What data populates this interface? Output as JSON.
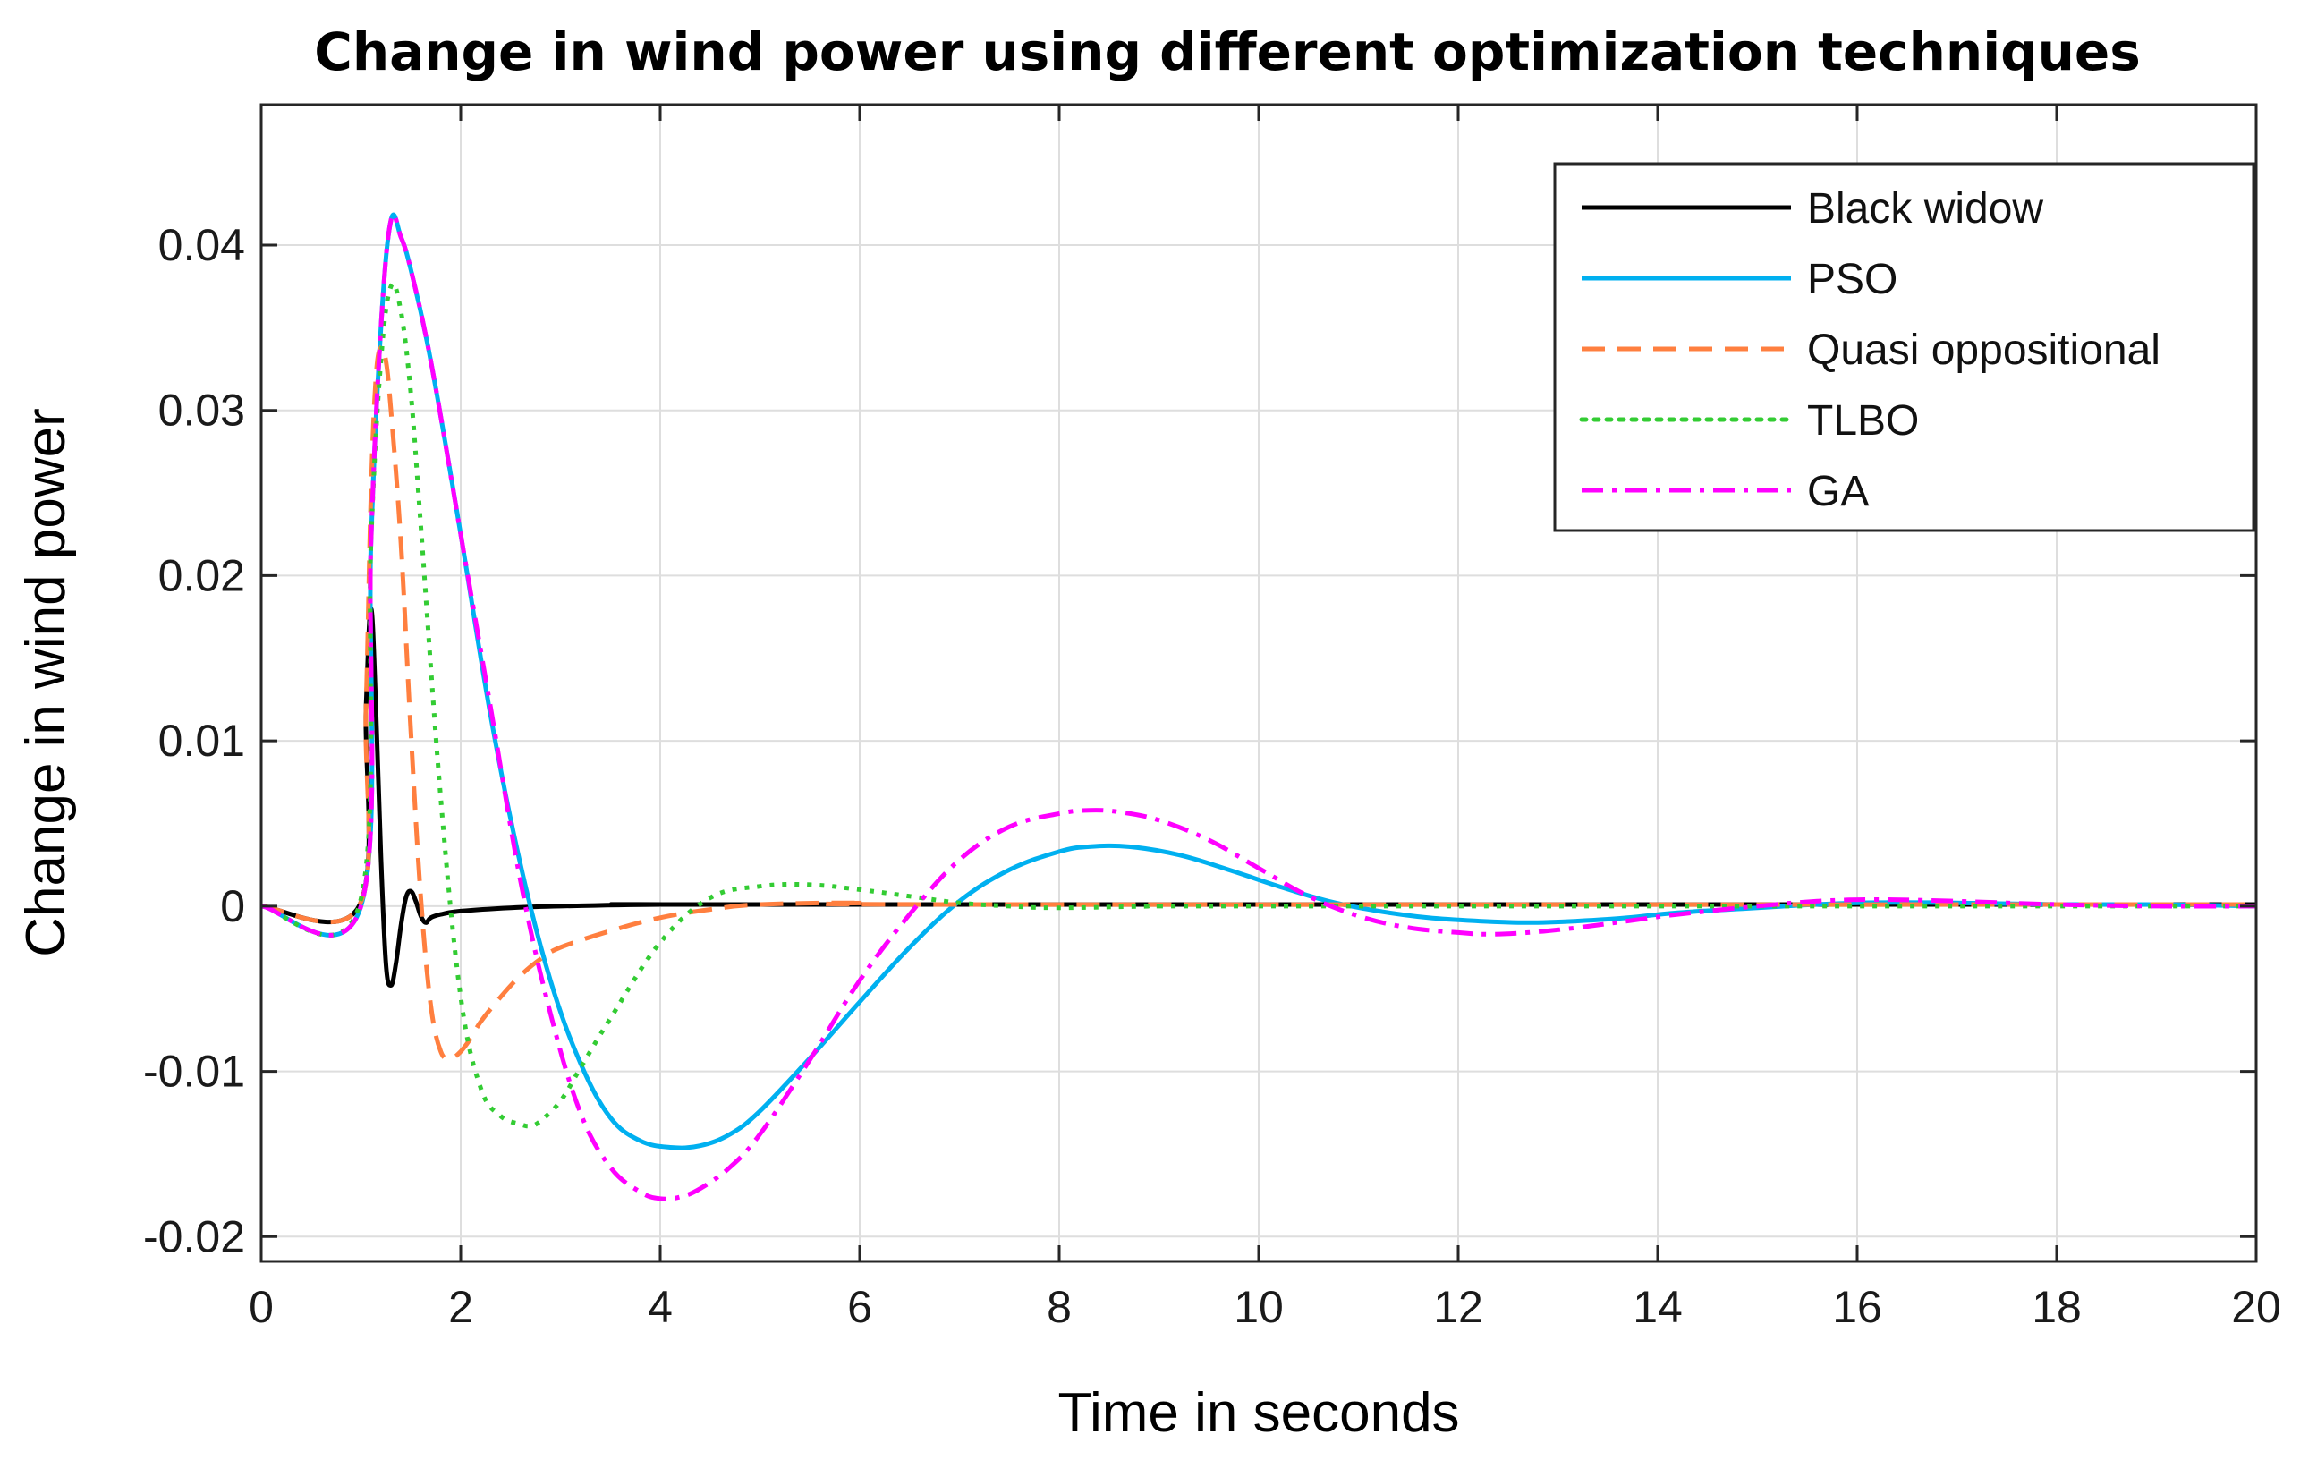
{
  "chart_data": {
    "type": "line",
    "title": "Change in wind power using different optimization techniques",
    "xlabel": "Time in seconds",
    "ylabel": "Change in wind power",
    "xlim": [
      0,
      20
    ],
    "ylim": [
      -0.0215,
      0.0485
    ],
    "xticks": [
      0,
      2,
      4,
      6,
      8,
      10,
      12,
      14,
      16,
      18,
      20
    ],
    "xtick_labels": [
      "0",
      "2",
      "4",
      "6",
      "8",
      "10",
      "12",
      "14",
      "16",
      "18",
      "20"
    ],
    "yticks": [
      -0.02,
      -0.01,
      0,
      0.01,
      0.02,
      0.03,
      0.04
    ],
    "ytick_labels": [
      "-0.02",
      "-0.01",
      "0",
      "0.01",
      "0.02",
      "0.03",
      "0.04"
    ],
    "grid": true,
    "legend_position": "top-right",
    "series": [
      {
        "name": "Black widow",
        "color": "#000000",
        "dash": "solid",
        "x": [
          0,
          0.98,
          1.05,
          1.1,
          1.15,
          1.2,
          1.25,
          1.3,
          1.35,
          1.4,
          1.45,
          1.5,
          1.55,
          1.6,
          1.65,
          1.7,
          1.8,
          2.0,
          2.5,
          3.0,
          4.0,
          5.0,
          20
        ],
        "y": [
          0,
          0,
          0.012,
          0.018,
          0.012,
          0.003,
          -0.0035,
          -0.0048,
          -0.0035,
          -0.0012,
          0.0005,
          0.0009,
          0.0003,
          -0.0006,
          -0.001,
          -0.0007,
          -0.0005,
          -0.0003,
          -0.0001,
          0,
          0.0001,
          0.0001,
          0.0001
        ]
      },
      {
        "name": "PSO",
        "color": "#00b0f0",
        "dash": "solid",
        "x": [
          0,
          1.0,
          1.1,
          1.2,
          1.3,
          1.4,
          1.5,
          1.7,
          2.0,
          2.3,
          2.6,
          2.9,
          3.2,
          3.5,
          3.8,
          4.1,
          4.4,
          4.7,
          5.0,
          5.5,
          6.0,
          6.5,
          7.0,
          7.5,
          8.0,
          8.3,
          8.7,
          9.2,
          9.7,
          10.2,
          10.7,
          11.2,
          11.7,
          12.2,
          12.7,
          13.2,
          13.7,
          14.2,
          15.0,
          16.0,
          17.0,
          18.0,
          19.0,
          20.0
        ],
        "y": [
          0,
          0,
          0.022,
          0.035,
          0.0415,
          0.0405,
          0.0385,
          0.033,
          0.0225,
          0.0115,
          0.0025,
          -0.0045,
          -0.0095,
          -0.0128,
          -0.0142,
          -0.0146,
          -0.0145,
          -0.0138,
          -0.0124,
          -0.0092,
          -0.0058,
          -0.0025,
          0.0003,
          0.0022,
          0.0033,
          0.0036,
          0.0036,
          0.0031,
          0.0022,
          0.0012,
          0.0003,
          -0.0003,
          -0.0007,
          -0.0009,
          -0.001,
          -0.0009,
          -0.0007,
          -0.0004,
          -0.0001,
          0.0002,
          0.0002,
          0.0001,
          0.0001,
          0
        ]
      },
      {
        "name": "Quasi oppositional",
        "color": "#ff7f3f",
        "dash": "dashed",
        "x": [
          0,
          0.98,
          1.05,
          1.1,
          1.15,
          1.2,
          1.25,
          1.3,
          1.4,
          1.5,
          1.6,
          1.7,
          1.8,
          1.9,
          2.0,
          2.1,
          2.2,
          2.4,
          2.6,
          2.8,
          3.0,
          3.5,
          4.0,
          4.5,
          5.0,
          6.0,
          7.0,
          20.0
        ],
        "y": [
          0,
          0,
          0.012,
          0.025,
          0.032,
          0.0338,
          0.033,
          0.03,
          0.022,
          0.0105,
          0.0005,
          -0.006,
          -0.0088,
          -0.0092,
          -0.0088,
          -0.008,
          -0.007,
          -0.0055,
          -0.0042,
          -0.0032,
          -0.0025,
          -0.0015,
          -0.0007,
          -0.0002,
          0.0001,
          0.0002,
          0.0001,
          0.0001
        ]
      },
      {
        "name": "TLBO",
        "color": "#33cc33",
        "dash": "dotted",
        "x": [
          0,
          0.98,
          1.1,
          1.2,
          1.3,
          1.4,
          1.5,
          1.6,
          1.8,
          2.0,
          2.2,
          2.4,
          2.6,
          2.7,
          2.8,
          3.0,
          3.2,
          3.5,
          4.0,
          4.5,
          5.0,
          5.5,
          6.0,
          6.5,
          7.0,
          7.5,
          8.0,
          9.0,
          10.0,
          20.0
        ],
        "y": [
          0,
          0,
          0.022,
          0.033,
          0.0375,
          0.036,
          0.031,
          0.023,
          0.0065,
          -0.0055,
          -0.011,
          -0.0127,
          -0.0132,
          -0.0133,
          -0.013,
          -0.0118,
          -0.0098,
          -0.0068,
          -0.0022,
          0.0005,
          0.0012,
          0.0013,
          0.001,
          0.0006,
          0.0002,
          0,
          -0.0001,
          0,
          0,
          0
        ]
      },
      {
        "name": "GA",
        "color": "#ff00ff",
        "dash": "dashdot",
        "x": [
          0,
          1.0,
          1.1,
          1.2,
          1.3,
          1.4,
          1.5,
          1.7,
          2.0,
          2.3,
          2.6,
          2.9,
          3.2,
          3.5,
          3.8,
          4.0,
          4.2,
          4.4,
          4.7,
          5.0,
          5.5,
          6.0,
          6.5,
          7.0,
          7.5,
          8.0,
          8.3,
          8.6,
          9.0,
          9.5,
          10.0,
          10.5,
          11.0,
          11.5,
          12.0,
          12.3,
          12.7,
          13.2,
          13.7,
          14.2,
          15.0,
          15.6,
          16.2,
          17.0,
          18.0,
          19.0,
          20.0
        ],
        "y": [
          0,
          0,
          0.022,
          0.035,
          0.0415,
          0.0405,
          0.0385,
          0.033,
          0.0225,
          0.012,
          0.0015,
          -0.0065,
          -0.0125,
          -0.0158,
          -0.0173,
          -0.0177,
          -0.0176,
          -0.0171,
          -0.0158,
          -0.0138,
          -0.0093,
          -0.0045,
          -0.0005,
          0.0028,
          0.0048,
          0.0056,
          0.0058,
          0.0057,
          0.0052,
          0.004,
          0.0023,
          0.0006,
          -0.0006,
          -0.0013,
          -0.0016,
          -0.0017,
          -0.0016,
          -0.0013,
          -0.0009,
          -0.0005,
          0,
          0.0003,
          0.0004,
          0.0003,
          0.0001,
          0,
          0
        ]
      }
    ]
  }
}
